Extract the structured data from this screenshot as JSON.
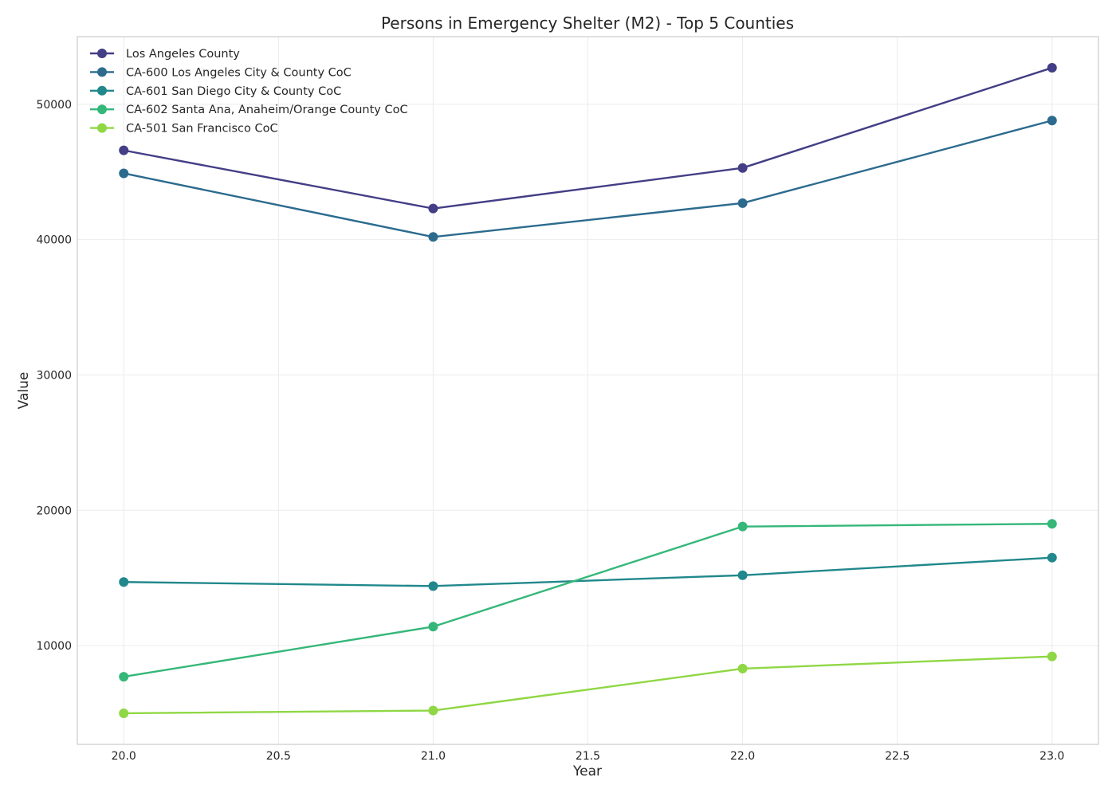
{
  "chart_data": {
    "type": "line",
    "title": "Persons in Emergency Shelter (M2) - Top 5 Counties",
    "xlabel": "Year",
    "ylabel": "Value",
    "x": [
      20.0,
      21.0,
      22.0,
      23.0
    ],
    "xlim": [
      19.85,
      23.15
    ],
    "ylim": [
      2700,
      55000
    ],
    "xticks": [
      20.0,
      20.5,
      21.0,
      21.5,
      22.0,
      22.5,
      23.0
    ],
    "xtick_labels": [
      "20.0",
      "20.5",
      "21.0",
      "21.5",
      "22.0",
      "22.5",
      "23.0"
    ],
    "yticks": [
      10000,
      20000,
      30000,
      40000,
      50000
    ],
    "ytick_labels": [
      "10000",
      "20000",
      "30000",
      "40000",
      "50000"
    ],
    "grid": true,
    "legend_position": "top-left",
    "series": [
      {
        "name": "Los Angeles County",
        "color": "#433e85",
        "values": [
          46600,
          42300,
          45300,
          52700
        ]
      },
      {
        "name": "CA-600 Los Angeles City & County CoC",
        "color": "#2c6b8e",
        "values": [
          44900,
          40200,
          42700,
          48800
        ]
      },
      {
        "name": "CA-601 San Diego City & County CoC",
        "color": "#21888c",
        "values": [
          14700,
          14400,
          15200,
          16500
        ]
      },
      {
        "name": "CA-602 Santa Ana, Anaheim/Orange County CoC",
        "color": "#35b779",
        "values": [
          7700,
          11400,
          18800,
          19000
        ]
      },
      {
        "name": "CA-501 San Francisco CoC",
        "color": "#8fd744",
        "values": [
          5000,
          5200,
          8300,
          9200
        ]
      }
    ]
  }
}
